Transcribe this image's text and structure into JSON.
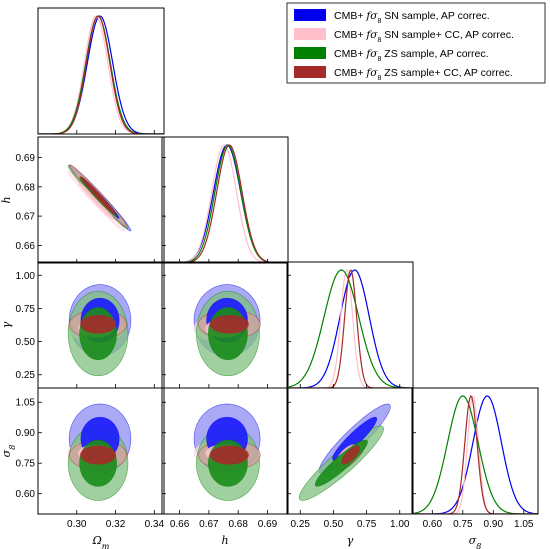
{
  "chart_data": {
    "type": "triangle-corner",
    "parameters": [
      {
        "key": "om",
        "label": "Ω",
        "sub": "m",
        "range": [
          0.28,
          0.345
        ],
        "ticks": [
          0.3,
          0.32,
          0.34
        ],
        "tick_labels": [
          "0.30",
          "0.32",
          "0.34"
        ]
      },
      {
        "key": "h",
        "label": "h",
        "sub": "",
        "range": [
          0.654,
          0.697
        ],
        "ticks": [
          0.66,
          0.67,
          0.68,
          0.69
        ],
        "tick_labels": [
          "0.66",
          "0.67",
          "0.68",
          "0.69"
        ]
      },
      {
        "key": "g",
        "label": "γ",
        "sub": "",
        "range": [
          0.15,
          1.1
        ],
        "ticks": [
          0.25,
          0.5,
          0.75,
          1.0
        ],
        "tick_labels": [
          "0.25",
          "0.50",
          "0.75",
          "1.00"
        ]
      },
      {
        "key": "s8",
        "label": "σ",
        "sub": "8",
        "range": [
          0.5,
          1.12
        ],
        "ticks": [
          0.6,
          0.75,
          0.9,
          1.05
        ],
        "tick_labels": [
          "0.60",
          "0.75",
          "0.90",
          "1.05"
        ]
      }
    ],
    "series": [
      {
        "name_parts": [
          "CMB+ ",
          "fσ",
          "8",
          " SN sample, AP correc."
        ],
        "color": "#0000ee",
        "fill_inner": "#1a1aff",
        "fill_outer": "#8c8cf2",
        "mean": {
          "om": 0.312,
          "h": 0.6762,
          "g": 0.66,
          "s8": 0.87
        },
        "sigma": {
          "om": 0.0065,
          "h": 0.0046,
          "g": 0.11,
          "s8": 0.07
        }
      },
      {
        "name_parts": [
          "CMB+ ",
          "fσ",
          "8",
          " SN sample+ CC, AP correc."
        ],
        "color": "#ffc0cb",
        "fill_inner": "#ffc0cb",
        "fill_outer": "#ffe2e7",
        "mean": {
          "om": 0.31,
          "h": 0.6752,
          "g": 0.6,
          "s8": 0.8
        },
        "sigma": {
          "om": 0.006,
          "h": 0.0042,
          "g": 0.045,
          "s8": 0.027
        }
      },
      {
        "name_parts": [
          "CMB+ ",
          "fσ",
          "8",
          " ZS sample, AP correc."
        ],
        "color": "#008000",
        "fill_inner": "#1a8c1a",
        "fill_outer": "#80c080",
        "mean": {
          "om": 0.311,
          "h": 0.6765,
          "g": 0.56,
          "s8": 0.75
        },
        "sigma": {
          "om": 0.0063,
          "h": 0.0044,
          "g": 0.13,
          "s8": 0.075
        }
      },
      {
        "name_parts": [
          "CMB+ ",
          "fσ",
          "8",
          " ZS sample+ CC, AP correc."
        ],
        "color": "#a52a2a",
        "fill_inner": "#a52a2a",
        "fill_outer": "#d4a0a0",
        "mean": {
          "om": 0.311,
          "h": 0.677,
          "g": 0.63,
          "s8": 0.79
        },
        "sigma": {
          "om": 0.006,
          "h": 0.0043,
          "g": 0.045,
          "s8": 0.03
        }
      }
    ],
    "legend": "top-right"
  }
}
